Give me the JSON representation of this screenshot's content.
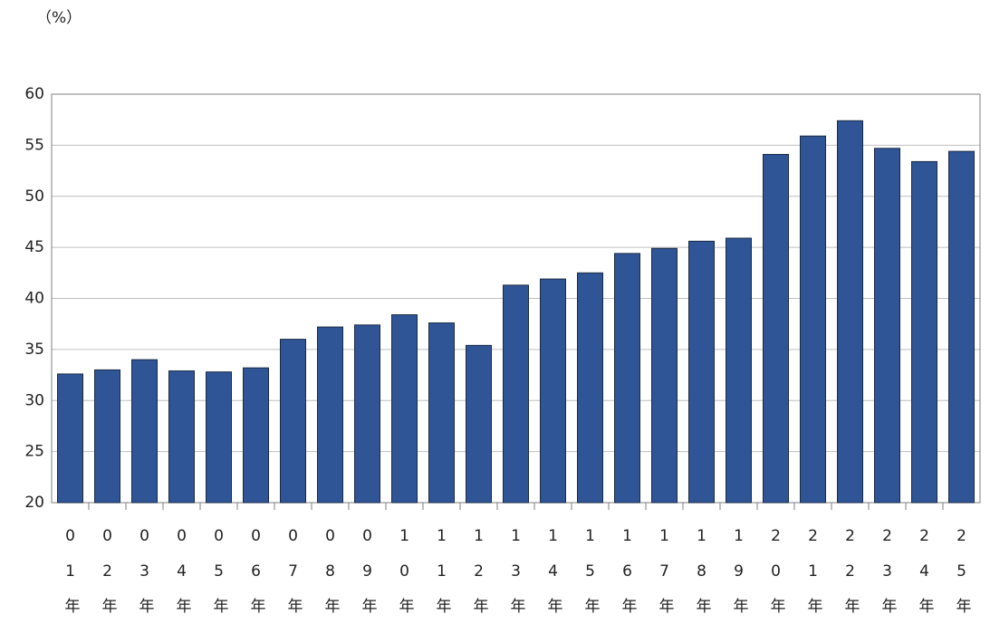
{
  "chart_data": {
    "type": "bar",
    "y_label": "（%）",
    "categories": [
      "01年",
      "02年",
      "03年",
      "04年",
      "05年",
      "06年",
      "07年",
      "08年",
      "09年",
      "10年",
      "11年",
      "12年",
      "13年",
      "14年",
      "15年",
      "16年",
      "17年",
      "18年",
      "19年",
      "20年",
      "21年",
      "22年",
      "23年",
      "24年",
      "25年"
    ],
    "values": [
      32.6,
      33.0,
      34.0,
      32.9,
      32.8,
      33.2,
      36.0,
      37.2,
      37.4,
      38.4,
      37.6,
      35.4,
      41.3,
      41.9,
      42.5,
      44.4,
      44.9,
      45.6,
      45.9,
      54.1,
      55.9,
      57.4,
      54.7,
      53.4,
      54.4
    ],
    "color": "#2f5597",
    "ylim": [
      20,
      60
    ],
    "yticks": [
      20,
      25,
      30,
      35,
      40,
      45,
      50,
      55,
      60
    ],
    "grid": true
  }
}
